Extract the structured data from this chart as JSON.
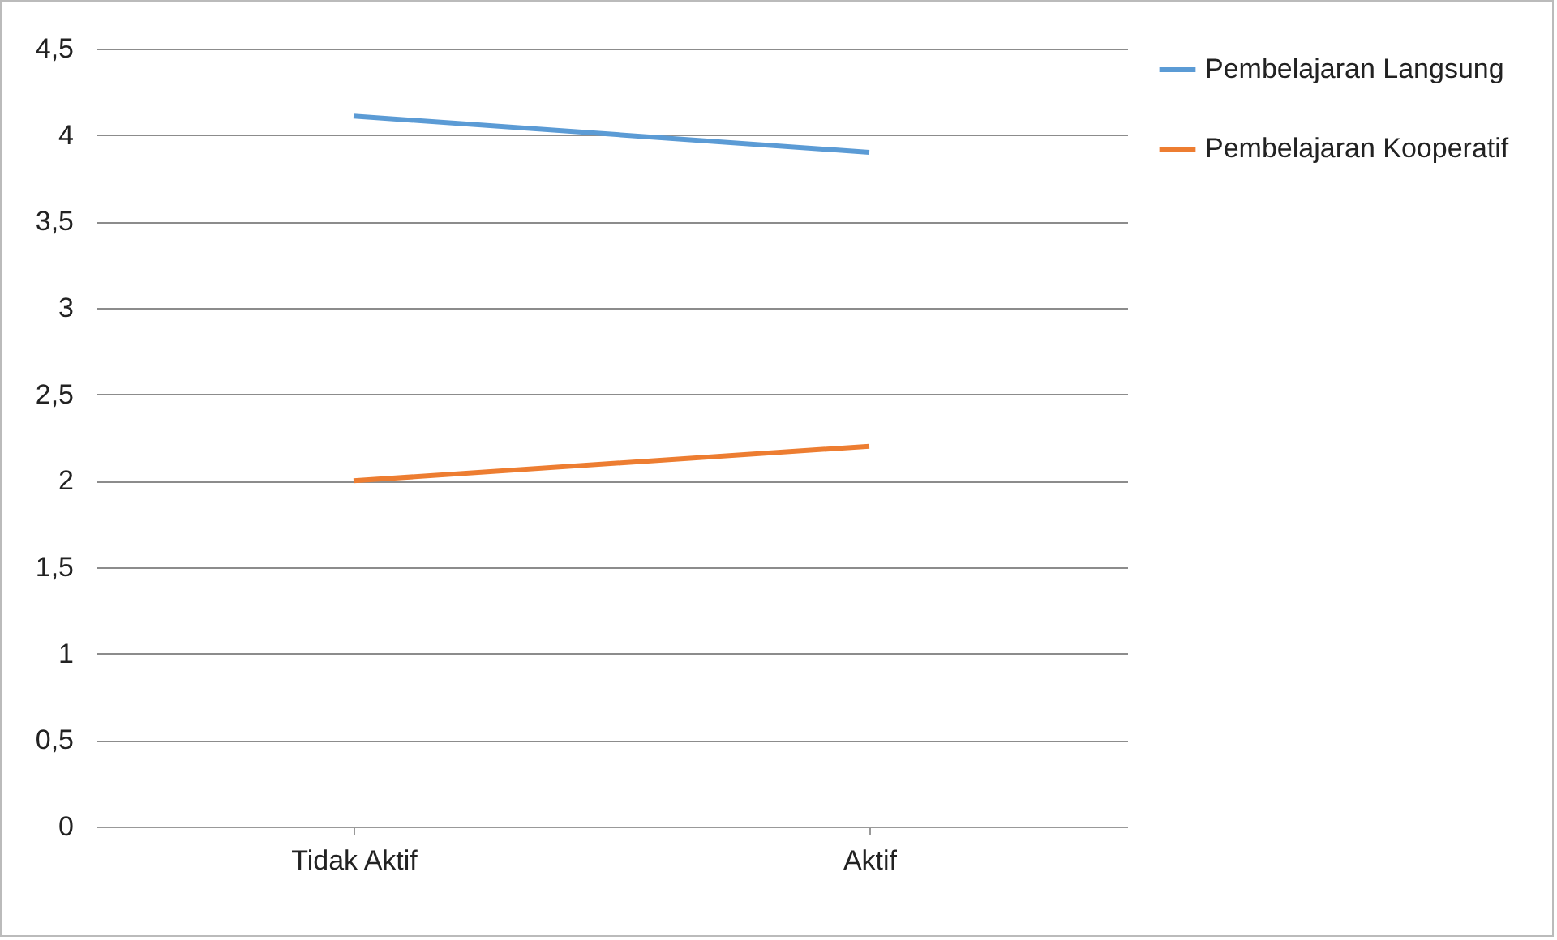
{
  "chart_data": {
    "type": "line",
    "categories": [
      "Tidak Aktif",
      "Aktif"
    ],
    "series": [
      {
        "name": "Pembelajaran Langsung",
        "color": "#5b9bd5",
        "values": [
          4.11,
          3.9
        ]
      },
      {
        "name": "Pembelajaran Kooperatif",
        "color": "#ed7d31",
        "values": [
          2.0,
          2.2
        ]
      }
    ],
    "ylim": [
      0,
      4.5
    ],
    "yticks": [
      0,
      {
        "value": 0.5,
        "label": "0,5"
      },
      1,
      {
        "value": 1.5,
        "label": "1,5"
      },
      2,
      {
        "value": 2.5,
        "label": "2,5"
      },
      3,
      {
        "value": 3.5,
        "label": "3,5"
      },
      4,
      {
        "value": 4.5,
        "label": "4,5"
      }
    ],
    "grid": "y",
    "legend": "right",
    "marker": "none",
    "line_style": "solid"
  }
}
